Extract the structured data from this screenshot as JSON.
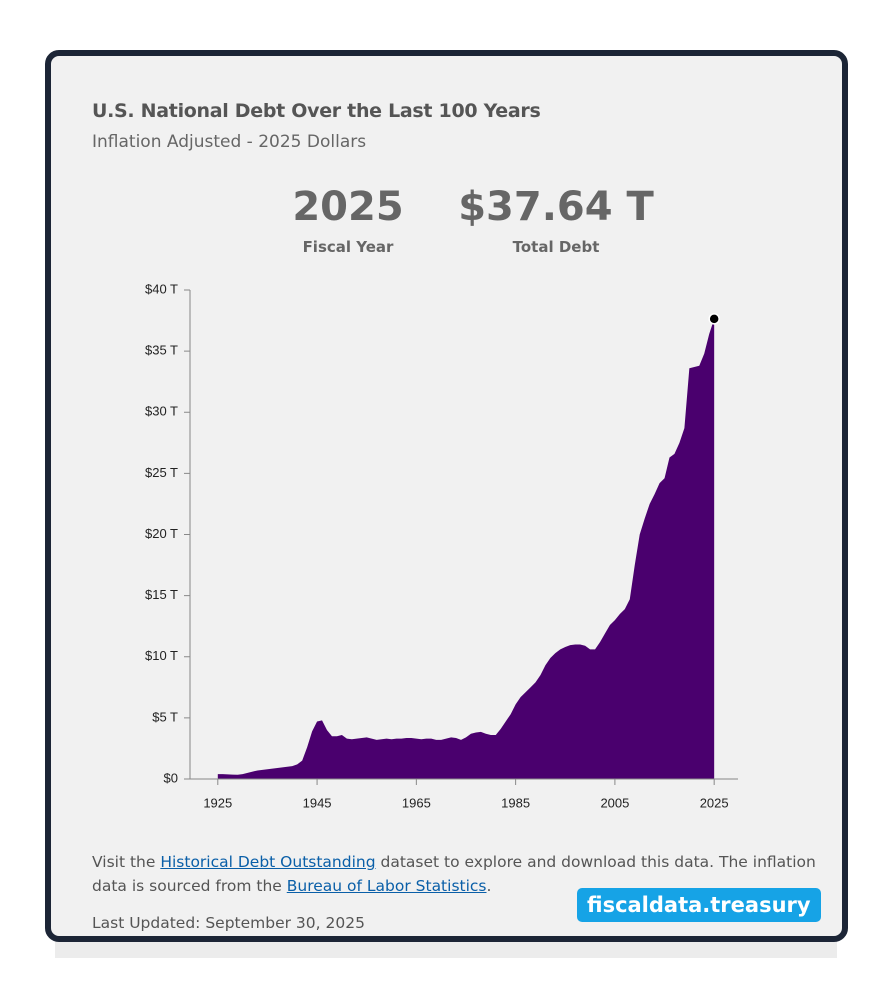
{
  "chart_data": {
    "type": "area",
    "title": "U.S. National Debt Over the Last 100 Years",
    "subtitle": "Inflation Adjusted - 2025 Dollars",
    "headline": [
      {
        "value": "2025",
        "label": "Fiscal Year"
      },
      {
        "value": "$37.64 T",
        "label": "Total Debt"
      }
    ],
    "color": "#4a006e",
    "x": [
      1925,
      1926,
      1927,
      1928,
      1929,
      1930,
      1931,
      1932,
      1933,
      1934,
      1935,
      1936,
      1937,
      1938,
      1939,
      1940,
      1941,
      1942,
      1943,
      1944,
      1945,
      1946,
      1947,
      1948,
      1949,
      1950,
      1951,
      1952,
      1953,
      1954,
      1955,
      1956,
      1957,
      1958,
      1959,
      1960,
      1961,
      1962,
      1963,
      1964,
      1965,
      1966,
      1967,
      1968,
      1969,
      1970,
      1971,
      1972,
      1973,
      1974,
      1975,
      1976,
      1977,
      1978,
      1979,
      1980,
      1981,
      1982,
      1983,
      1984,
      1985,
      1986,
      1987,
      1988,
      1989,
      1990,
      1991,
      1992,
      1993,
      1994,
      1995,
      1996,
      1997,
      1998,
      1999,
      2000,
      2001,
      2002,
      2003,
      2004,
      2005,
      2006,
      2007,
      2008,
      2009,
      2010,
      2011,
      2012,
      2013,
      2014,
      2015,
      2016,
      2017,
      2018,
      2019,
      2020,
      2021,
      2022,
      2023,
      2024,
      2025
    ],
    "values": [
      0.4,
      0.4,
      0.38,
      0.36,
      0.35,
      0.4,
      0.5,
      0.6,
      0.7,
      0.75,
      0.8,
      0.85,
      0.9,
      0.95,
      1.0,
      1.05,
      1.2,
      1.5,
      2.6,
      3.9,
      4.7,
      4.8,
      4.0,
      3.5,
      3.5,
      3.6,
      3.3,
      3.25,
      3.3,
      3.35,
      3.4,
      3.3,
      3.2,
      3.25,
      3.3,
      3.25,
      3.3,
      3.3,
      3.35,
      3.35,
      3.3,
      3.25,
      3.3,
      3.3,
      3.2,
      3.2,
      3.3,
      3.4,
      3.35,
      3.2,
      3.4,
      3.7,
      3.8,
      3.85,
      3.7,
      3.6,
      3.6,
      4.1,
      4.7,
      5.3,
      6.1,
      6.7,
      7.1,
      7.5,
      7.9,
      8.5,
      9.3,
      9.9,
      10.3,
      10.6,
      10.8,
      10.95,
      11.0,
      11.0,
      10.9,
      10.6,
      10.6,
      11.2,
      11.9,
      12.6,
      13.0,
      13.5,
      13.9,
      14.7,
      17.5,
      20.0,
      21.3,
      22.5,
      23.3,
      24.2,
      24.6,
      26.3,
      26.6,
      27.5,
      28.7,
      33.6,
      33.7,
      33.8,
      34.8,
      36.4,
      37.64
    ],
    "xlim": [
      1919.4,
      2029.8
    ],
    "xticks": [
      1925,
      1945,
      1965,
      1985,
      2005,
      2025
    ],
    "ylim": [
      0,
      40
    ],
    "yticks": [
      {
        "value": 0,
        "label": "$0"
      },
      {
        "value": 5,
        "label": "$5 T"
      },
      {
        "value": 10,
        "label": "$10 T"
      },
      {
        "value": 15,
        "label": "$15 T"
      },
      {
        "value": 20,
        "label": "$20 T"
      },
      {
        "value": 25,
        "label": "$25 T"
      },
      {
        "value": 30,
        "label": "$30 T"
      },
      {
        "value": 35,
        "label": "$35 T"
      },
      {
        "value": 40,
        "label": "$40 T"
      }
    ]
  },
  "footer": {
    "parts": [
      "Visit the ",
      "Historical Debt Outstanding",
      " dataset to explore and download this data. The inflation data is sourced from the ",
      "Bureau of Labor Statistics",
      "."
    ],
    "last_updated": "Last Updated: September 30, 2025",
    "badge": "fiscaldata.treasury"
  }
}
